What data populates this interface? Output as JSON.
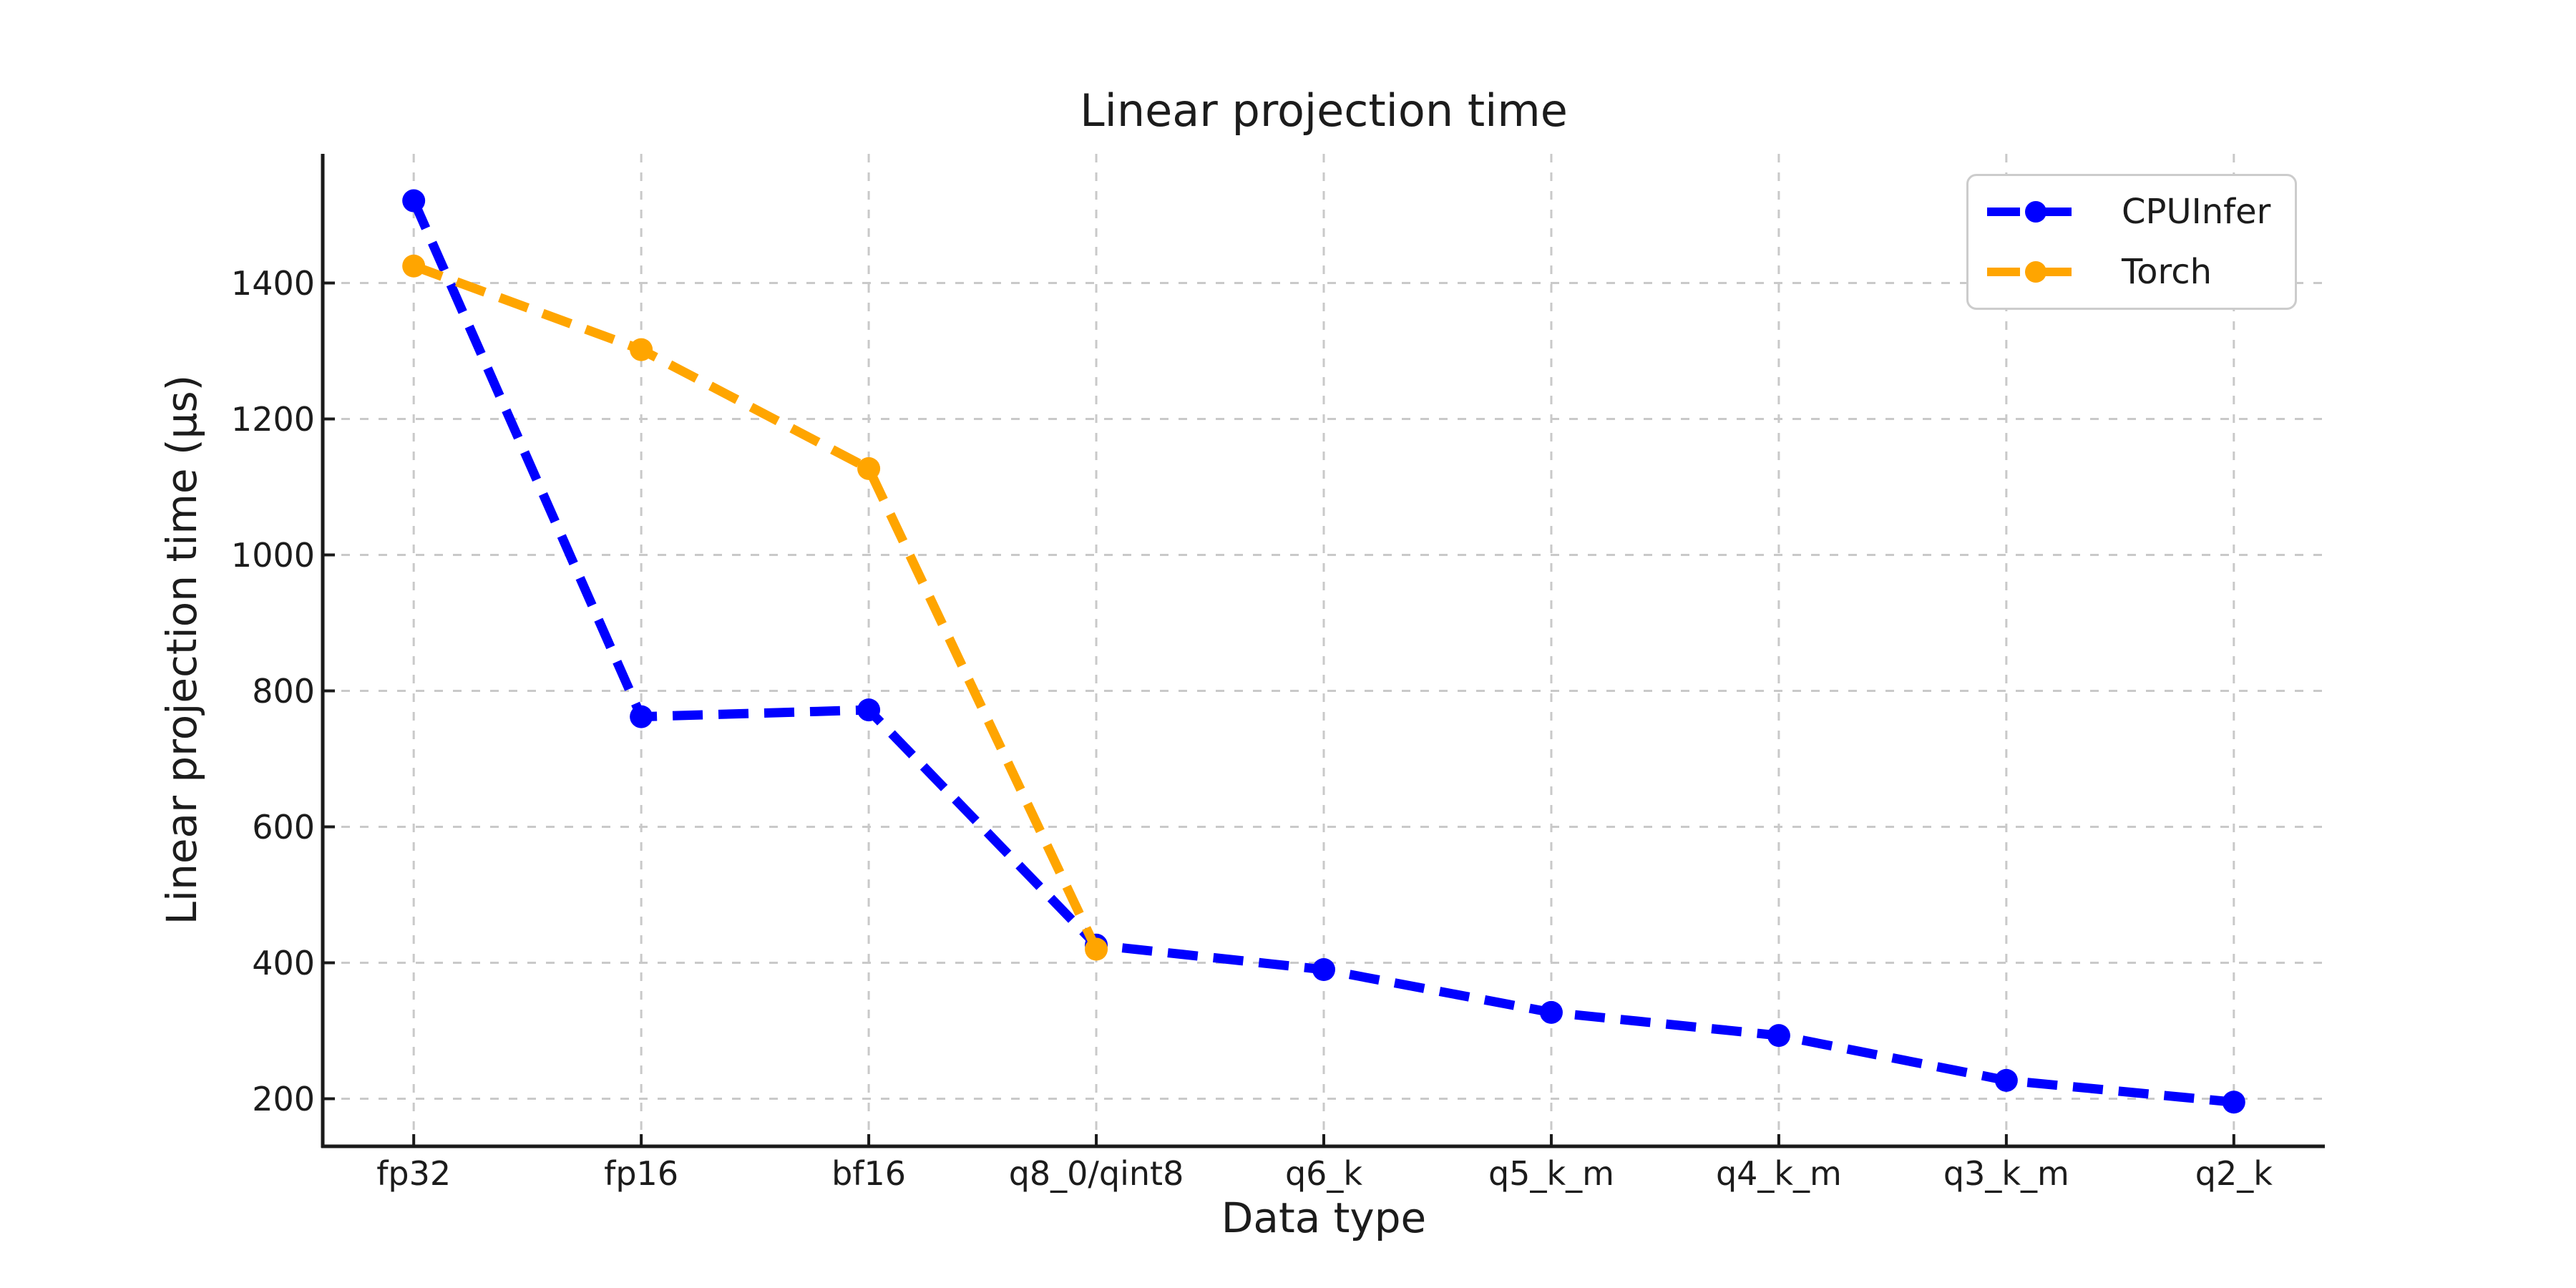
{
  "figure": {
    "background_color": "#ffffff"
  },
  "chart_data": {
    "type": "line",
    "title": "Linear projection time",
    "xlabel": "Data type",
    "ylabel": "Linear projection time (μs)",
    "categories": [
      "fp32",
      "fp16",
      "bf16",
      "q8_0/qint8",
      "q6_k",
      "q5_k_m",
      "q4_k_m",
      "q3_k_m",
      "q2_k"
    ],
    "yticks": [
      200,
      400,
      600,
      800,
      1000,
      1200,
      1400
    ],
    "ylim": [
      130,
      1590
    ],
    "grid": true,
    "grid_color": "#c9c9c9",
    "axis_color": "#1a1a1a",
    "text_color": "#1c1c1c",
    "legend_position": "upper right",
    "series": [
      {
        "name": "CPUInfer",
        "color": "#0000ff",
        "linestyle": "dashed",
        "marker": "circle",
        "values": [
          1521,
          762,
          772,
          426,
          390,
          327,
          293,
          227,
          195
        ]
      },
      {
        "name": "Torch",
        "color": "#ffa500",
        "linestyle": "dashed",
        "marker": "circle",
        "values": [
          1425,
          1302,
          1127,
          420
        ]
      }
    ]
  }
}
